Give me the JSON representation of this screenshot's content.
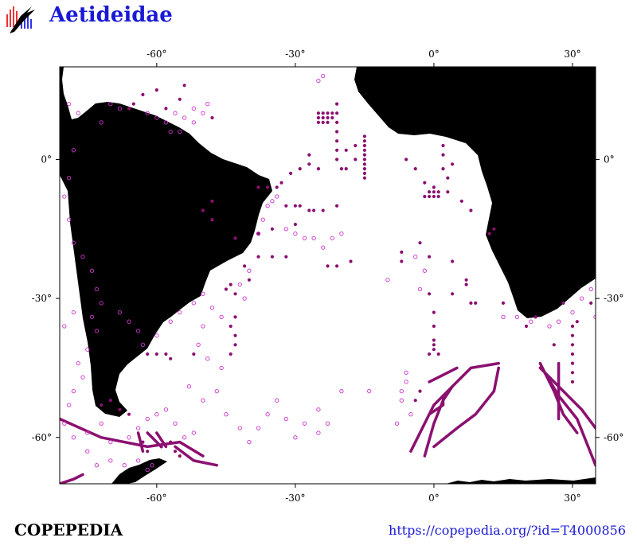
{
  "header": {
    "title": "Aetideidae",
    "logo_icon": "copepedia-logo-icon"
  },
  "footer": {
    "site": "COPEPEDIA",
    "url": "https://copepedia.org/?id=T4000856"
  },
  "map": {
    "projection": "equirectangular",
    "lon_range": [
      -81,
      35
    ],
    "lat_range": [
      -70,
      20
    ],
    "lon_ticks": [
      {
        "v": -60,
        "label": "-60°"
      },
      {
        "v": -30,
        "label": "-30°"
      },
      {
        "v": 0,
        "label": "0°"
      },
      {
        "v": 30,
        "label": "30°"
      }
    ],
    "lat_ticks": [
      {
        "v": 0,
        "label": "0°"
      },
      {
        "v": -30,
        "label": "-30°"
      },
      {
        "v": -60,
        "label": "-60°"
      }
    ],
    "colors": {
      "land": "#000000",
      "ocean": "#ffffff",
      "record": "#8b1070",
      "record_open": "#cc33cc"
    },
    "records_filled": [
      [
        -25,
        10
      ],
      [
        -24,
        10
      ],
      [
        -23,
        10
      ],
      [
        -22,
        10
      ],
      [
        -25,
        9
      ],
      [
        -24,
        9
      ],
      [
        -23,
        9
      ],
      [
        -22,
        9
      ],
      [
        -25,
        8
      ],
      [
        -24,
        8
      ],
      [
        -23,
        8
      ],
      [
        -21,
        12
      ],
      [
        -21,
        10
      ],
      [
        -21,
        8
      ],
      [
        -21,
        6
      ],
      [
        -21,
        4
      ],
      [
        -21,
        2
      ],
      [
        -21,
        0
      ],
      [
        -15,
        5
      ],
      [
        -15,
        4
      ],
      [
        -15,
        3
      ],
      [
        -15,
        2
      ],
      [
        -15,
        1
      ],
      [
        -15,
        0
      ],
      [
        -15,
        -1
      ],
      [
        -15,
        -2
      ],
      [
        -15,
        -3
      ],
      [
        -15,
        -4
      ],
      [
        -17,
        3
      ],
      [
        -17,
        0
      ],
      [
        -19,
        -2
      ],
      [
        -19,
        2
      ],
      [
        -20,
        -2
      ],
      [
        -27,
        1
      ],
      [
        -27,
        -1
      ],
      [
        -25,
        -2
      ],
      [
        -29,
        -2
      ],
      [
        -31,
        -3
      ],
      [
        -33,
        -5
      ],
      [
        -34,
        -6
      ],
      [
        -36,
        -6
      ],
      [
        -38,
        -6
      ],
      [
        -32,
        -10
      ],
      [
        -30,
        -10
      ],
      [
        -29,
        -10
      ],
      [
        -27,
        -11
      ],
      [
        -26,
        -11
      ],
      [
        -24,
        -11
      ],
      [
        -21,
        -10
      ],
      [
        -2,
        -8
      ],
      [
        -1,
        -7
      ],
      [
        0,
        -8
      ],
      [
        1,
        -7
      ],
      [
        0,
        -7
      ],
      [
        -1,
        -8
      ],
      [
        1,
        -8
      ],
      [
        0,
        -6
      ],
      [
        2,
        1
      ],
      [
        2,
        3
      ],
      [
        2,
        -2
      ],
      [
        3,
        -4
      ],
      [
        -6,
        0
      ],
      [
        -4,
        -2
      ],
      [
        -2,
        -5
      ],
      [
        3,
        -7
      ],
      [
        6,
        -9
      ],
      [
        8,
        -11
      ],
      [
        4,
        -1
      ],
      [
        -7,
        -20
      ],
      [
        -7,
        -22
      ],
      [
        -3,
        -18
      ],
      [
        -1,
        -21
      ],
      [
        -1,
        -29
      ],
      [
        0,
        -33
      ],
      [
        0,
        -36
      ],
      [
        0,
        -39
      ],
      [
        0,
        -41
      ],
      [
        1,
        -42
      ],
      [
        -1,
        -42
      ],
      [
        0,
        -40
      ],
      [
        4,
        -29
      ],
      [
        4,
        -22
      ],
      [
        9,
        -31
      ],
      [
        8,
        -31
      ],
      [
        7,
        -26
      ],
      [
        7,
        -27
      ],
      [
        12,
        -16
      ],
      [
        13,
        -15
      ],
      [
        15,
        -31
      ],
      [
        -23,
        -23
      ],
      [
        -21,
        -23
      ],
      [
        -18,
        -22
      ],
      [
        -30,
        -14
      ],
      [
        -35,
        -15
      ],
      [
        -38,
        -16
      ],
      [
        -43,
        -17
      ],
      [
        -38,
        -21
      ],
      [
        -35,
        -21
      ],
      [
        -32,
        -21
      ],
      [
        -41,
        -23
      ],
      [
        -40,
        -26
      ],
      [
        -45,
        -28
      ],
      [
        -43,
        -29
      ],
      [
        -44,
        -27
      ],
      [
        -48,
        -13
      ],
      [
        -50,
        -11
      ],
      [
        -48,
        -9
      ],
      [
        -66,
        11
      ],
      [
        -65,
        12
      ],
      [
        -63,
        14
      ],
      [
        -60,
        15
      ],
      [
        -55,
        13
      ],
      [
        -58,
        11
      ],
      [
        -54,
        16
      ],
      [
        -48,
        9
      ],
      [
        -62,
        -42
      ],
      [
        -60,
        -42
      ],
      [
        -58,
        -42
      ],
      [
        -57,
        -43
      ],
      [
        -52,
        -42
      ],
      [
        -43,
        -40
      ],
      [
        -44,
        -42
      ],
      [
        -43,
        -38
      ],
      [
        -44,
        -36
      ],
      [
        -43,
        -34
      ],
      [
        -68,
        -54
      ],
      [
        -66,
        -55
      ],
      [
        -72,
        -53
      ],
      [
        -70,
        -52
      ],
      [
        -59,
        -62
      ],
      [
        -57,
        -61
      ],
      [
        -56,
        -63
      ],
      [
        -55,
        -64
      ],
      [
        -62,
        -63
      ],
      [
        -63,
        -61
      ],
      [
        30,
        -36
      ],
      [
        30,
        -38
      ],
      [
        30,
        -40
      ],
      [
        30,
        -42
      ],
      [
        30,
        -44
      ],
      [
        30,
        -46
      ],
      [
        30,
        -48
      ],
      [
        26,
        -40
      ],
      [
        20,
        -36
      ],
      [
        22,
        -34
      ],
      [
        28,
        -31
      ],
      [
        31,
        -35
      ],
      [
        34,
        -31
      ],
      [
        -4,
        -52
      ],
      [
        -3,
        -50
      ]
    ],
    "records_open": [
      [
        -79,
        12
      ],
      [
        -77,
        10
      ],
      [
        -72,
        8
      ],
      [
        -70,
        12
      ],
      [
        -68,
        11
      ],
      [
        -62,
        10
      ],
      [
        -60,
        9
      ],
      [
        -58,
        8
      ],
      [
        -56,
        10
      ],
      [
        -54,
        9
      ],
      [
        -52,
        8
      ],
      [
        -52,
        11
      ],
      [
        -50,
        10
      ],
      [
        -49,
        12
      ],
      [
        -57,
        6
      ],
      [
        -55,
        6
      ],
      [
        -78,
        2
      ],
      [
        -79,
        -4
      ],
      [
        -80,
        -8
      ],
      [
        -79,
        -13
      ],
      [
        -78,
        -18
      ],
      [
        -76,
        -21
      ],
      [
        -74,
        -24
      ],
      [
        -73,
        -28
      ],
      [
        -72,
        -31
      ],
      [
        -74,
        -34
      ],
      [
        -78,
        -33
      ],
      [
        -80,
        -36
      ],
      [
        -73,
        -37
      ],
      [
        -75,
        -41
      ],
      [
        -77,
        -44
      ],
      [
        -76,
        -47
      ],
      [
        -78,
        -50
      ],
      [
        -79,
        -53
      ],
      [
        -80,
        -57
      ],
      [
        -78,
        -60
      ],
      [
        -75,
        -63
      ],
      [
        -73,
        -66
      ],
      [
        -70,
        -65
      ],
      [
        -67,
        -66
      ],
      [
        -64,
        -65
      ],
      [
        -62,
        -67
      ],
      [
        -61,
        -66
      ],
      [
        -75,
        -59
      ],
      [
        -72,
        -57
      ],
      [
        -70,
        -61
      ],
      [
        -66,
        -60
      ],
      [
        -64,
        -58
      ],
      [
        -62,
        -56
      ],
      [
        -60,
        -55
      ],
      [
        -58,
        -54
      ],
      [
        -56,
        -57
      ],
      [
        -54,
        -60
      ],
      [
        -52,
        -59
      ],
      [
        -68,
        -33
      ],
      [
        -66,
        -35
      ],
      [
        -64,
        -37
      ],
      [
        -63,
        -40
      ],
      [
        -60,
        -38
      ],
      [
        -57,
        -35
      ],
      [
        -55,
        -33
      ],
      [
        -52,
        -31
      ],
      [
        -50,
        -29
      ],
      [
        -48,
        -32
      ],
      [
        -46,
        -34
      ],
      [
        -50,
        -36
      ],
      [
        -51,
        -40
      ],
      [
        -49,
        -43
      ],
      [
        -46,
        -45
      ],
      [
        -47,
        -50
      ],
      [
        -50,
        -52
      ],
      [
        -53,
        -49
      ],
      [
        -45,
        -55
      ],
      [
        -42,
        -58
      ],
      [
        -40,
        -61
      ],
      [
        -38,
        -58
      ],
      [
        -36,
        -55
      ],
      [
        -34,
        -52
      ],
      [
        -32,
        -56
      ],
      [
        -30,
        -60
      ],
      [
        -28,
        -57
      ],
      [
        -25,
        -59
      ],
      [
        -23,
        -57
      ],
      [
        -25,
        -54
      ],
      [
        -20,
        -50
      ],
      [
        -14,
        -50
      ],
      [
        -42,
        -27
      ],
      [
        -41,
        -30
      ],
      [
        -40,
        -24
      ],
      [
        -38,
        -16
      ],
      [
        -37,
        -13
      ],
      [
        -36,
        -10
      ],
      [
        -35,
        -9
      ],
      [
        -34,
        -8
      ],
      [
        -32,
        -15
      ],
      [
        -30,
        -16
      ],
      [
        -28,
        -17
      ],
      [
        -26,
        -17
      ],
      [
        -24,
        -19
      ],
      [
        -22,
        -17
      ],
      [
        -20,
        -16
      ],
      [
        -24,
        18
      ],
      [
        -25,
        17
      ],
      [
        -10,
        -26
      ],
      [
        -3,
        -28
      ],
      [
        -2,
        -24
      ],
      [
        -4,
        -21
      ],
      [
        15,
        -34
      ],
      [
        18,
        -34
      ],
      [
        21,
        -35
      ],
      [
        25,
        -36
      ],
      [
        27,
        -35
      ],
      [
        30,
        -33
      ],
      [
        32,
        -30
      ],
      [
        34,
        -28
      ],
      [
        35,
        -34
      ],
      [
        -6,
        -46
      ],
      [
        -6,
        -48
      ],
      [
        -7,
        -50
      ],
      [
        -7,
        -52
      ],
      [
        -5,
        -55
      ],
      [
        -8,
        -57
      ]
    ],
    "tracks": [
      [
        [
          -81,
          -56
        ],
        [
          -72,
          -60
        ],
        [
          -62,
          -62
        ],
        [
          -55,
          -61
        ],
        [
          -50,
          -64
        ]
      ],
      [
        [
          -64,
          -59
        ],
        [
          -63,
          -63
        ]
      ],
      [
        [
          -60,
          -59
        ],
        [
          -58,
          -62
        ]
      ],
      [
        [
          -62,
          -59
        ],
        [
          -59,
          -62
        ]
      ],
      [
        [
          -56,
          -62
        ],
        [
          -52,
          -65
        ],
        [
          -47,
          -66
        ]
      ],
      [
        [
          -5,
          -63
        ],
        [
          0,
          -53
        ],
        [
          4,
          -49
        ],
        [
          8,
          -45
        ],
        [
          14,
          -44
        ]
      ],
      [
        [
          -2,
          -64
        ],
        [
          0,
          -57
        ],
        [
          2,
          -52
        ],
        [
          4,
          -49
        ]
      ],
      [
        [
          0,
          -62
        ],
        [
          5,
          -58
        ],
        [
          9,
          -55
        ],
        [
          13,
          -50
        ],
        [
          14,
          -45
        ]
      ],
      [
        [
          -1,
          -48
        ],
        [
          3,
          -46
        ],
        [
          5,
          -45
        ]
      ],
      [
        [
          -1,
          -55
        ],
        [
          2,
          -53
        ],
        [
          2,
          -51
        ]
      ],
      [
        [
          23,
          -44
        ],
        [
          26,
          -50
        ],
        [
          28,
          -55
        ],
        [
          31,
          -59
        ]
      ],
      [
        [
          24,
          -46
        ],
        [
          27,
          -51
        ],
        [
          31,
          -56
        ],
        [
          35,
          -66
        ]
      ],
      [
        [
          23,
          -45
        ],
        [
          27,
          -49
        ],
        [
          32,
          -54
        ],
        [
          35,
          -58
        ]
      ],
      [
        [
          27,
          -44
        ],
        [
          27,
          -56
        ]
      ],
      [
        [
          -81,
          -70
        ],
        [
          -78,
          -69
        ],
        [
          -76,
          -68
        ]
      ]
    ]
  }
}
